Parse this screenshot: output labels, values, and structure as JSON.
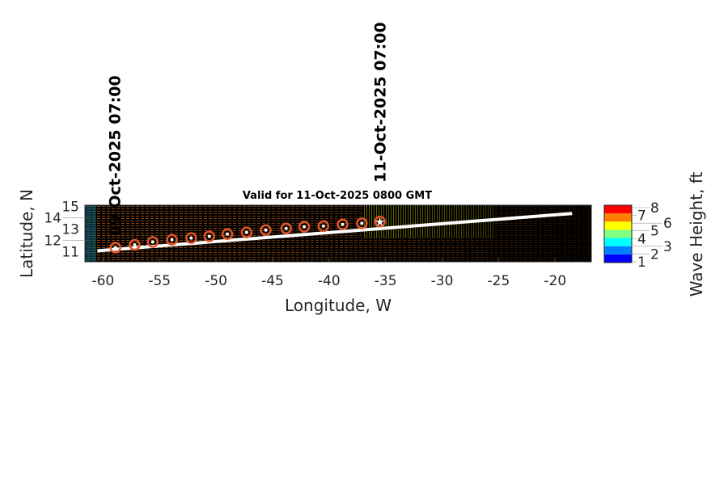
{
  "chart_data": {
    "type": "scatter",
    "title": "Valid for 11-Oct-2025 0800 GMT",
    "xlabel": "Longitude, W",
    "ylabel": "Latitude, N",
    "xlim": [
      -61.6,
      -16.8
    ],
    "ylim": [
      10.1,
      15.1
    ],
    "xticks": [
      -60,
      -55,
      -50,
      -45,
      -40,
      -35,
      -30,
      -25,
      -20
    ],
    "yticks": [
      11,
      12,
      13,
      14,
      15
    ],
    "track_points": {
      "lon": [
        -58.9,
        -57.2,
        -55.6,
        -53.9,
        -52.2,
        -50.6,
        -49.0,
        -47.3,
        -45.6,
        -43.8,
        -42.2,
        -40.5,
        -38.8,
        -37.1,
        -35.5
      ],
      "lat": [
        11.35,
        11.6,
        11.85,
        12.05,
        12.2,
        12.35,
        12.55,
        12.7,
        12.9,
        13.05,
        13.2,
        13.25,
        13.4,
        13.5,
        13.65
      ]
    },
    "route_line": {
      "lon": [
        -60.5,
        -18.5
      ],
      "lat": [
        11.07,
        14.37
      ]
    },
    "date_labels": [
      {
        "text": "09-Oct-2025 07:00",
        "lon": -59.0
      },
      {
        "text": "11-Oct-2025 07:00",
        "lon": -35.5
      }
    ],
    "colorbar": {
      "label": "Wave Height, ft",
      "ticks": [
        "1",
        "2",
        "3",
        "4",
        "5",
        "6",
        "7",
        "8"
      ],
      "colors": [
        "#0000ff",
        "#0080ff",
        "#00ffff",
        "#80ff80",
        "#ffff00",
        "#ff8000",
        "#ff0000"
      ]
    },
    "marker_color": "#e0552a"
  }
}
